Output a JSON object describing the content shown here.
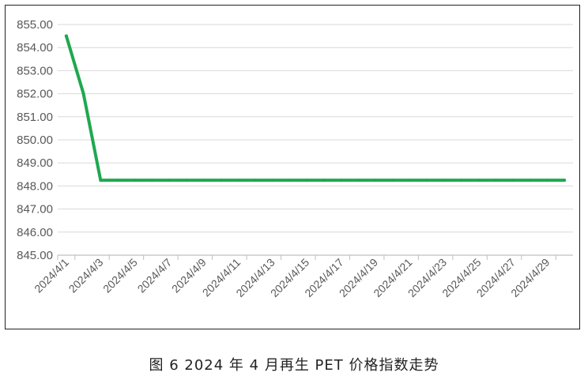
{
  "caption": "图 6  2024 年 4 月再生 PET 价格指数走势",
  "chart_data": {
    "type": "line",
    "title": "",
    "xlabel": "",
    "ylabel": "",
    "ylim": [
      845.0,
      855.0
    ],
    "yticks": [
      "845.00",
      "846.00",
      "847.00",
      "848.00",
      "849.00",
      "850.00",
      "851.00",
      "852.00",
      "853.00",
      "854.00",
      "855.00"
    ],
    "categories": [
      "2024/4/1",
      "2024/4/2",
      "2024/4/3",
      "2024/4/4",
      "2024/4/5",
      "2024/4/6",
      "2024/4/7",
      "2024/4/8",
      "2024/4/9",
      "2024/4/10",
      "2024/4/11",
      "2024/4/12",
      "2024/4/13",
      "2024/4/14",
      "2024/4/15",
      "2024/4/16",
      "2024/4/17",
      "2024/4/18",
      "2024/4/19",
      "2024/4/20",
      "2024/4/21",
      "2024/4/22",
      "2024/4/23",
      "2024/4/24",
      "2024/4/25",
      "2024/4/26",
      "2024/4/27",
      "2024/4/28",
      "2024/4/29",
      "2024/4/30"
    ],
    "xtick_labels": [
      "2024/4/1",
      "2024/4/3",
      "2024/4/5",
      "2024/4/7",
      "2024/4/9",
      "2024/4/11",
      "2024/4/13",
      "2024/4/15",
      "2024/4/17",
      "2024/4/19",
      "2024/4/21",
      "2024/4/23",
      "2024/4/25",
      "2024/4/27",
      "2024/4/29"
    ],
    "series": [
      {
        "values": [
          854.5,
          852.0,
          848.25,
          848.25,
          848.25,
          848.25,
          848.25,
          848.25,
          848.25,
          848.25,
          848.25,
          848.25,
          848.25,
          848.25,
          848.25,
          848.25,
          848.25,
          848.25,
          848.25,
          848.25,
          848.25,
          848.25,
          848.25,
          848.25,
          848.25,
          848.25,
          848.25,
          848.25,
          848.25,
          848.25
        ],
        "color": "#1fa84f"
      }
    ],
    "grid": true,
    "gridline_color": "#d9d9d9",
    "axis_color": "#bfbfbf"
  }
}
